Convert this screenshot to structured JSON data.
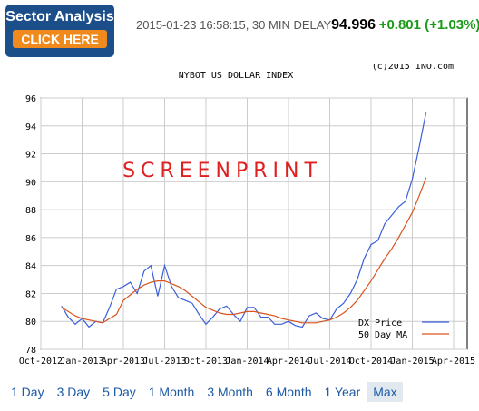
{
  "header": {
    "banner_title": "Sector Analysis",
    "banner_button": "CLICK HERE",
    "timestamp": "2015-01-23 16:58:15, 30 MIN DELAY",
    "price": 94.996,
    "change": "+0.801 (+1.03%)"
  },
  "chart_data": {
    "type": "line",
    "title": "NYBOT US DOLLAR INDEX",
    "copyright": "(c)2015 INO.com",
    "watermark": "SCREENPRINT",
    "x": [
      "Oct-2012",
      null,
      null,
      null,
      null,
      null,
      "Jan-2013",
      null,
      null,
      null,
      null,
      null,
      "Apr-2013",
      null,
      null,
      null,
      null,
      null,
      "Jul-2013",
      null,
      null,
      null,
      null,
      null,
      "Oct-2013",
      null,
      null,
      null,
      null,
      null,
      "Jan-2014",
      null,
      null,
      null,
      null,
      null,
      "Apr-2014",
      null,
      null,
      null,
      null,
      null,
      "Jul-2014",
      null,
      null,
      null,
      null,
      null,
      "Oct-2014",
      null,
      null,
      null,
      null,
      null,
      "Jan-2015",
      null,
      null,
      null,
      null,
      null,
      "Apr-2015"
    ],
    "series": [
      {
        "name": "DX Price",
        "color": "#3a5fd9",
        "values": [
          null,
          null,
          null,
          81.1,
          80.3,
          79.8,
          80.2,
          79.6,
          80.0,
          79.9,
          81.0,
          82.3,
          82.5,
          82.8,
          82.0,
          83.6,
          84.0,
          81.8,
          84.0,
          82.5,
          81.7,
          81.5,
          81.3,
          80.5,
          79.8,
          80.3,
          80.9,
          81.1,
          80.5,
          80.0,
          81.0,
          81.0,
          80.3,
          80.3,
          79.8,
          79.8,
          80.0,
          79.7,
          79.6,
          80.4,
          80.6,
          80.2,
          80.1,
          80.9,
          81.3,
          82.0,
          83.0,
          84.5,
          85.5,
          85.8,
          87.0,
          87.6,
          88.2,
          88.6,
          90.2,
          92.5,
          95.0,
          null,
          null,
          null,
          null
        ]
      },
      {
        "name": "50 Day MA",
        "color": "#d9541e",
        "values": [
          null,
          null,
          null,
          81.0,
          80.7,
          80.4,
          80.2,
          80.1,
          80.0,
          79.9,
          80.2,
          80.5,
          81.5,
          81.9,
          82.3,
          82.6,
          82.8,
          82.9,
          82.9,
          82.7,
          82.5,
          82.2,
          81.8,
          81.4,
          81.0,
          80.8,
          80.6,
          80.5,
          80.5,
          80.6,
          80.7,
          80.7,
          80.6,
          80.5,
          80.4,
          80.2,
          80.1,
          80.0,
          79.9,
          79.9,
          79.9,
          80.0,
          80.1,
          80.3,
          80.6,
          81.0,
          81.5,
          82.2,
          82.9,
          83.7,
          84.5,
          85.2,
          86.0,
          86.9,
          87.8,
          89.0,
          90.3,
          null,
          null,
          null,
          null
        ]
      }
    ],
    "ylim": [
      78,
      96
    ],
    "yticks": [
      78,
      80,
      82,
      84,
      86,
      88,
      90,
      92,
      94,
      96
    ],
    "grid": true,
    "legend": "lower-right"
  },
  "periods": [
    "1 Day",
    "3 Day",
    "5 Day",
    "1 Month",
    "3 Month",
    "6 Month",
    "1 Year",
    "Max"
  ],
  "selected_period": 7
}
